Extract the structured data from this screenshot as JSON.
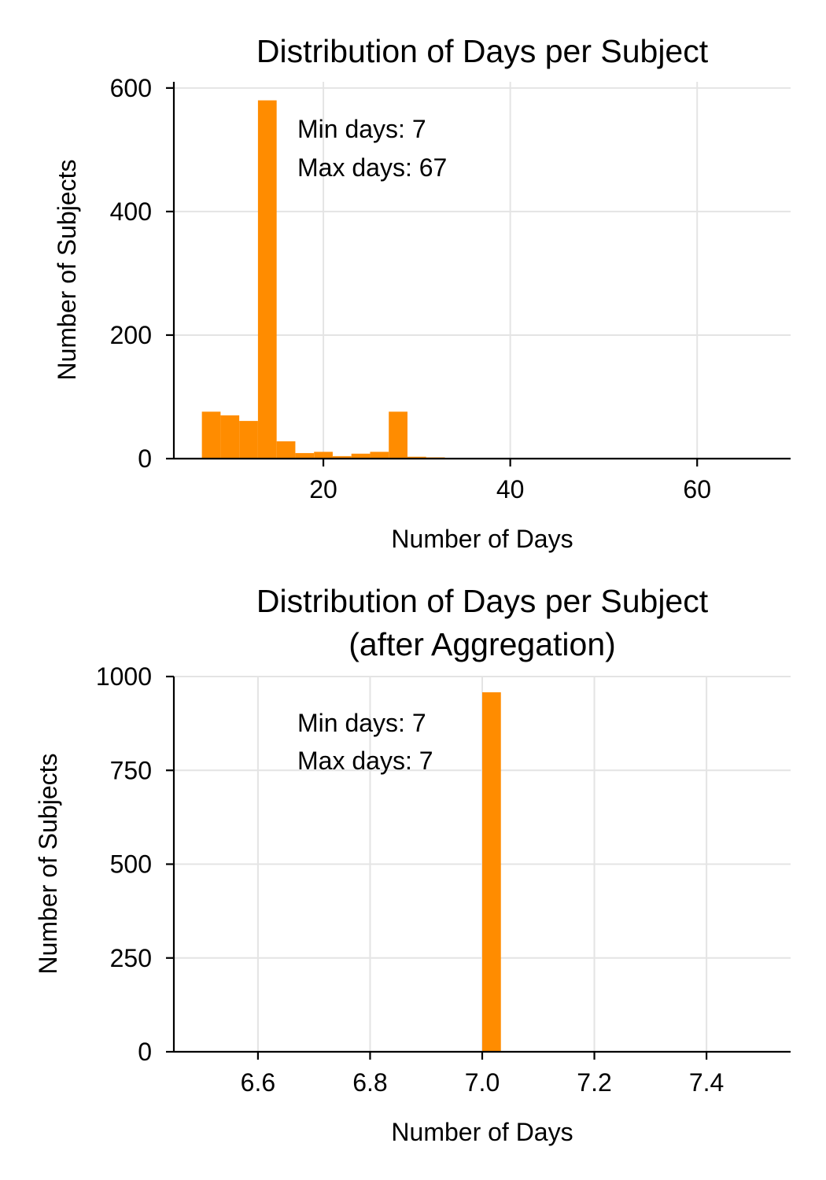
{
  "chart_data": [
    {
      "type": "bar",
      "title": "Distribution of Days per Subject",
      "xlabel": "Number of Days",
      "ylabel": "Number of Subjects",
      "xlim": [
        4,
        70
      ],
      "ylim": [
        0,
        610
      ],
      "xticks": [
        20,
        40,
        60
      ],
      "yticks": [
        0,
        200,
        400,
        600
      ],
      "grid": true,
      "bins": [
        {
          "x0": 7,
          "x1": 9,
          "count": 76
        },
        {
          "x0": 9,
          "x1": 11,
          "count": 70
        },
        {
          "x0": 11,
          "x1": 13,
          "count": 61
        },
        {
          "x0": 13,
          "x1": 15,
          "count": 580
        },
        {
          "x0": 15,
          "x1": 17,
          "count": 28
        },
        {
          "x0": 17,
          "x1": 19,
          "count": 9
        },
        {
          "x0": 19,
          "x1": 21,
          "count": 11
        },
        {
          "x0": 21,
          "x1": 23,
          "count": 4
        },
        {
          "x0": 23,
          "x1": 25,
          "count": 8
        },
        {
          "x0": 25,
          "x1": 27,
          "count": 11
        },
        {
          "x0": 27,
          "x1": 29,
          "count": 76
        },
        {
          "x0": 29,
          "x1": 31,
          "count": 3
        },
        {
          "x0": 31,
          "x1": 33,
          "count": 2
        },
        {
          "x0": 33,
          "x1": 35,
          "count": 1
        },
        {
          "x0": 35,
          "x1": 67,
          "count": 1
        }
      ],
      "color": "#ff8c00",
      "annotations": [
        "Min days: 7",
        "Max days: 67"
      ]
    },
    {
      "type": "bar",
      "title_lines": [
        "Distribution of Days per Subject",
        "(after Aggregation)"
      ],
      "xlabel": "Number of Days",
      "ylabel": "Number of Subjects",
      "xlim": [
        6.45,
        7.55
      ],
      "ylim": [
        0,
        1000
      ],
      "xticks": [
        6.6,
        6.8,
        7.0,
        7.2,
        7.4
      ],
      "xtick_labels": [
        "6.6",
        "6.8",
        "7.0",
        "7.2",
        "7.4"
      ],
      "yticks": [
        0,
        250,
        500,
        750,
        1000
      ],
      "grid": true,
      "bins": [
        {
          "x0": 7.0,
          "x1": 7.0333,
          "count": 958
        }
      ],
      "color": "#ff8c00",
      "annotations": [
        "Min days: 7",
        "Max days: 7"
      ]
    }
  ]
}
